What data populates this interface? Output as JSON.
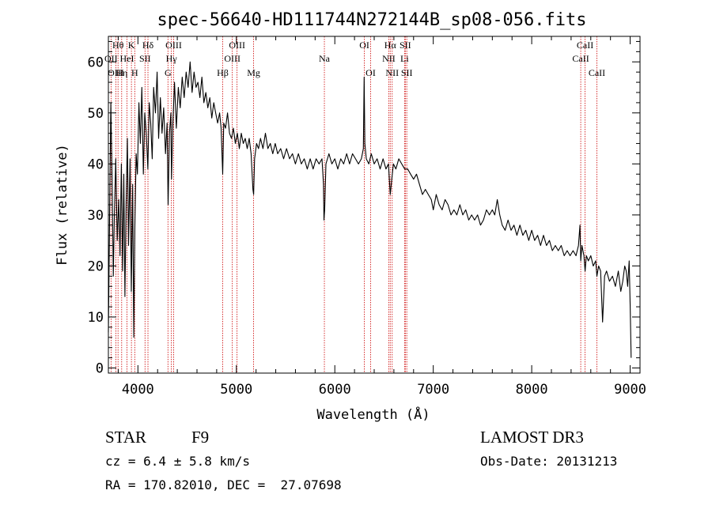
{
  "title": "spec-56640-HD111744N272144B_sp08-056.fits",
  "footer": {
    "class": "STAR",
    "subclass": "F9",
    "survey": "LAMOST DR3",
    "cz": "cz = 6.4 ± 5.8 km/s",
    "obs_date": "Obs-Date: 20131213",
    "radec": "RA = 170.82010, DEC =  27.07698"
  },
  "chart_data": {
    "type": "line",
    "title": "spec-56640-HD111744N272144B_sp08-056.fits",
    "xlabel": "Wavelength (Å)",
    "ylabel": "Flux (relative)",
    "xlim": [
      3700,
      9100
    ],
    "ylim": [
      -1,
      65
    ],
    "xticks": [
      4000,
      5000,
      6000,
      7000,
      8000,
      9000
    ],
    "yticks": [
      0,
      10,
      20,
      30,
      40,
      50,
      60
    ],
    "grid": false,
    "line_color": "#000000",
    "marker_color": "#cc0000",
    "lines": [
      {
        "label": "OII",
        "x": 3727,
        "row": 1
      },
      {
        "label": "Hθ",
        "x": 3798,
        "row": 0
      },
      {
        "label": "OIII",
        "x": 3776,
        "row": 2
      },
      {
        "label": "Hη",
        "x": 3835,
        "row": 2
      },
      {
        "label": "HeI",
        "x": 3889,
        "row": 1
      },
      {
        "label": "K",
        "x": 3934,
        "row": 0
      },
      {
        "label": "H",
        "x": 3968,
        "row": 2
      },
      {
        "label": "SII",
        "x": 4072,
        "row": 1
      },
      {
        "label": "Hδ",
        "x": 4102,
        "row": 0
      },
      {
        "label": "G",
        "x": 4305,
        "row": 2
      },
      {
        "label": "Hγ",
        "x": 4340,
        "row": 1
      },
      {
        "label": "OIII",
        "x": 4363,
        "row": 0
      },
      {
        "label": "Hβ",
        "x": 4861,
        "row": 2
      },
      {
        "label": "OIII",
        "x": 4959,
        "row": 1
      },
      {
        "label": "OIII",
        "x": 5007,
        "row": 0
      },
      {
        "label": "Mg",
        "x": 5175,
        "row": 2
      },
      {
        "label": "Na",
        "x": 5894,
        "row": 1
      },
      {
        "label": "OI",
        "x": 6300,
        "row": 0
      },
      {
        "label": "OI",
        "x": 6364,
        "row": 2
      },
      {
        "label": "NII",
        "x": 6548,
        "row": 1
      },
      {
        "label": "Hα",
        "x": 6563,
        "row": 0
      },
      {
        "label": "NII",
        "x": 6583,
        "row": 2
      },
      {
        "label": "SII",
        "x": 6716,
        "row": 0
      },
      {
        "label": "Li",
        "x": 6708,
        "row": 1
      },
      {
        "label": "SII",
        "x": 6731,
        "row": 2
      },
      {
        "label": "CaII",
        "x": 8498,
        "row": 1
      },
      {
        "label": "CaII",
        "x": 8542,
        "row": 0
      },
      {
        "label": "CaII",
        "x": 8662,
        "row": 2
      }
    ],
    "series": [
      {
        "name": "spectrum",
        "points": [
          [
            3700,
            7
          ],
          [
            3712,
            29
          ],
          [
            3725,
            52
          ],
          [
            3738,
            37
          ],
          [
            3750,
            18
          ],
          [
            3762,
            31
          ],
          [
            3775,
            41
          ],
          [
            3790,
            25
          ],
          [
            3805,
            33
          ],
          [
            3818,
            22
          ],
          [
            3832,
            40
          ],
          [
            3845,
            19
          ],
          [
            3857,
            38
          ],
          [
            3868,
            14
          ],
          [
            3880,
            32
          ],
          [
            3893,
            45
          ],
          [
            3905,
            24
          ],
          [
            3920,
            41
          ],
          [
            3933,
            15
          ],
          [
            3947,
            36
          ],
          [
            3958,
            6
          ],
          [
            3969,
            28
          ],
          [
            3982,
            42
          ],
          [
            3995,
            38
          ],
          [
            4010,
            52
          ],
          [
            4025,
            44
          ],
          [
            4040,
            55
          ],
          [
            4055,
            38
          ],
          [
            4070,
            50
          ],
          [
            4085,
            46
          ],
          [
            4101,
            39
          ],
          [
            4115,
            52
          ],
          [
            4130,
            48
          ],
          [
            4145,
            41
          ],
          [
            4160,
            55
          ],
          [
            4178,
            50
          ],
          [
            4195,
            58
          ],
          [
            4210,
            45
          ],
          [
            4228,
            53
          ],
          [
            4245,
            46
          ],
          [
            4262,
            51
          ],
          [
            4280,
            42
          ],
          [
            4296,
            48
          ],
          [
            4307,
            32
          ],
          [
            4320,
            46
          ],
          [
            4335,
            50
          ],
          [
            4341,
            37
          ],
          [
            4355,
            48
          ],
          [
            4372,
            56
          ],
          [
            4390,
            47
          ],
          [
            4410,
            55
          ],
          [
            4430,
            51
          ],
          [
            4450,
            57
          ],
          [
            4470,
            53
          ],
          [
            4490,
            58
          ],
          [
            4510,
            55
          ],
          [
            4530,
            60
          ],
          [
            4550,
            54
          ],
          [
            4570,
            58
          ],
          [
            4590,
            55
          ],
          [
            4610,
            56
          ],
          [
            4630,
            53
          ],
          [
            4650,
            57
          ],
          [
            4670,
            52
          ],
          [
            4690,
            54
          ],
          [
            4710,
            51
          ],
          [
            4730,
            53
          ],
          [
            4750,
            49
          ],
          [
            4770,
            52
          ],
          [
            4790,
            50
          ],
          [
            4810,
            48
          ],
          [
            4830,
            50
          ],
          [
            4845,
            47
          ],
          [
            4861,
            38
          ],
          [
            4872,
            48
          ],
          [
            4890,
            47
          ],
          [
            4910,
            50
          ],
          [
            4930,
            46
          ],
          [
            4950,
            45
          ],
          [
            4970,
            47
          ],
          [
            4990,
            44
          ],
          [
            5010,
            46
          ],
          [
            5030,
            43
          ],
          [
            5050,
            46
          ],
          [
            5070,
            44
          ],
          [
            5090,
            45
          ],
          [
            5110,
            43
          ],
          [
            5130,
            45
          ],
          [
            5150,
            42
          ],
          [
            5168,
            35
          ],
          [
            5175,
            34
          ],
          [
            5185,
            41
          ],
          [
            5205,
            44
          ],
          [
            5225,
            43
          ],
          [
            5245,
            45
          ],
          [
            5270,
            43
          ],
          [
            5295,
            46
          ],
          [
            5320,
            43
          ],
          [
            5345,
            44
          ],
          [
            5370,
            42
          ],
          [
            5395,
            44
          ],
          [
            5420,
            42
          ],
          [
            5450,
            43
          ],
          [
            5480,
            41
          ],
          [
            5510,
            43
          ],
          [
            5540,
            41
          ],
          [
            5570,
            42
          ],
          [
            5600,
            40
          ],
          [
            5630,
            42
          ],
          [
            5660,
            40
          ],
          [
            5690,
            41
          ],
          [
            5720,
            39
          ],
          [
            5750,
            41
          ],
          [
            5780,
            39
          ],
          [
            5810,
            41
          ],
          [
            5840,
            40
          ],
          [
            5870,
            41
          ],
          [
            5885,
            36
          ],
          [
            5890,
            29
          ],
          [
            5897,
            31
          ],
          [
            5910,
            40
          ],
          [
            5940,
            42
          ],
          [
            5970,
            40
          ],
          [
            6000,
            41
          ],
          [
            6030,
            39
          ],
          [
            6060,
            41
          ],
          [
            6090,
            40
          ],
          [
            6120,
            42
          ],
          [
            6150,
            40
          ],
          [
            6180,
            42
          ],
          [
            6210,
            41
          ],
          [
            6240,
            40
          ],
          [
            6270,
            41
          ],
          [
            6290,
            43
          ],
          [
            6298,
            57
          ],
          [
            6305,
            44
          ],
          [
            6320,
            41
          ],
          [
            6345,
            40
          ],
          [
            6370,
            42
          ],
          [
            6400,
            40
          ],
          [
            6430,
            41
          ],
          [
            6460,
            39
          ],
          [
            6490,
            41
          ],
          [
            6520,
            39
          ],
          [
            6545,
            40
          ],
          [
            6563,
            34
          ],
          [
            6578,
            37
          ],
          [
            6595,
            40
          ],
          [
            6620,
            39
          ],
          [
            6650,
            41
          ],
          [
            6680,
            40
          ],
          [
            6710,
            39
          ],
          [
            6740,
            39
          ],
          [
            6770,
            38
          ],
          [
            6800,
            37
          ],
          [
            6830,
            38
          ],
          [
            6860,
            36
          ],
          [
            6890,
            34
          ],
          [
            6920,
            35
          ],
          [
            6950,
            34
          ],
          [
            6980,
            33
          ],
          [
            7000,
            31
          ],
          [
            7030,
            34
          ],
          [
            7060,
            32
          ],
          [
            7090,
            31
          ],
          [
            7120,
            33
          ],
          [
            7150,
            32
          ],
          [
            7180,
            30
          ],
          [
            7210,
            31
          ],
          [
            7240,
            30
          ],
          [
            7270,
            32
          ],
          [
            7300,
            30
          ],
          [
            7330,
            31
          ],
          [
            7360,
            29
          ],
          [
            7390,
            30
          ],
          [
            7420,
            29
          ],
          [
            7450,
            30
          ],
          [
            7480,
            28
          ],
          [
            7510,
            29
          ],
          [
            7540,
            31
          ],
          [
            7570,
            30
          ],
          [
            7600,
            31
          ],
          [
            7625,
            30
          ],
          [
            7650,
            33
          ],
          [
            7675,
            30
          ],
          [
            7700,
            28
          ],
          [
            7730,
            27
          ],
          [
            7760,
            29
          ],
          [
            7790,
            27
          ],
          [
            7820,
            28
          ],
          [
            7850,
            26
          ],
          [
            7880,
            28
          ],
          [
            7910,
            26
          ],
          [
            7940,
            27
          ],
          [
            7970,
            25
          ],
          [
            8000,
            27
          ],
          [
            8030,
            25
          ],
          [
            8060,
            26
          ],
          [
            8090,
            24
          ],
          [
            8120,
            26
          ],
          [
            8150,
            24
          ],
          [
            8180,
            25
          ],
          [
            8210,
            23
          ],
          [
            8240,
            24
          ],
          [
            8270,
            23
          ],
          [
            8300,
            24
          ],
          [
            8330,
            22
          ],
          [
            8360,
            23
          ],
          [
            8390,
            22
          ],
          [
            8420,
            23
          ],
          [
            8450,
            22
          ],
          [
            8475,
            24
          ],
          [
            8490,
            28
          ],
          [
            8498,
            21
          ],
          [
            8510,
            24
          ],
          [
            8530,
            22
          ],
          [
            8542,
            19
          ],
          [
            8555,
            22
          ],
          [
            8575,
            21
          ],
          [
            8600,
            22
          ],
          [
            8625,
            20
          ],
          [
            8650,
            21
          ],
          [
            8662,
            18
          ],
          [
            8680,
            20
          ],
          [
            8700,
            19
          ],
          [
            8720,
            9
          ],
          [
            8740,
            18
          ],
          [
            8760,
            19
          ],
          [
            8790,
            17
          ],
          [
            8820,
            18
          ],
          [
            8850,
            16
          ],
          [
            8880,
            19
          ],
          [
            8905,
            15
          ],
          [
            8925,
            17
          ],
          [
            8945,
            20
          ],
          [
            8960,
            19
          ],
          [
            8975,
            16
          ],
          [
            8990,
            21
          ],
          [
            9000,
            12
          ],
          [
            9010,
            2
          ]
        ]
      }
    ]
  }
}
